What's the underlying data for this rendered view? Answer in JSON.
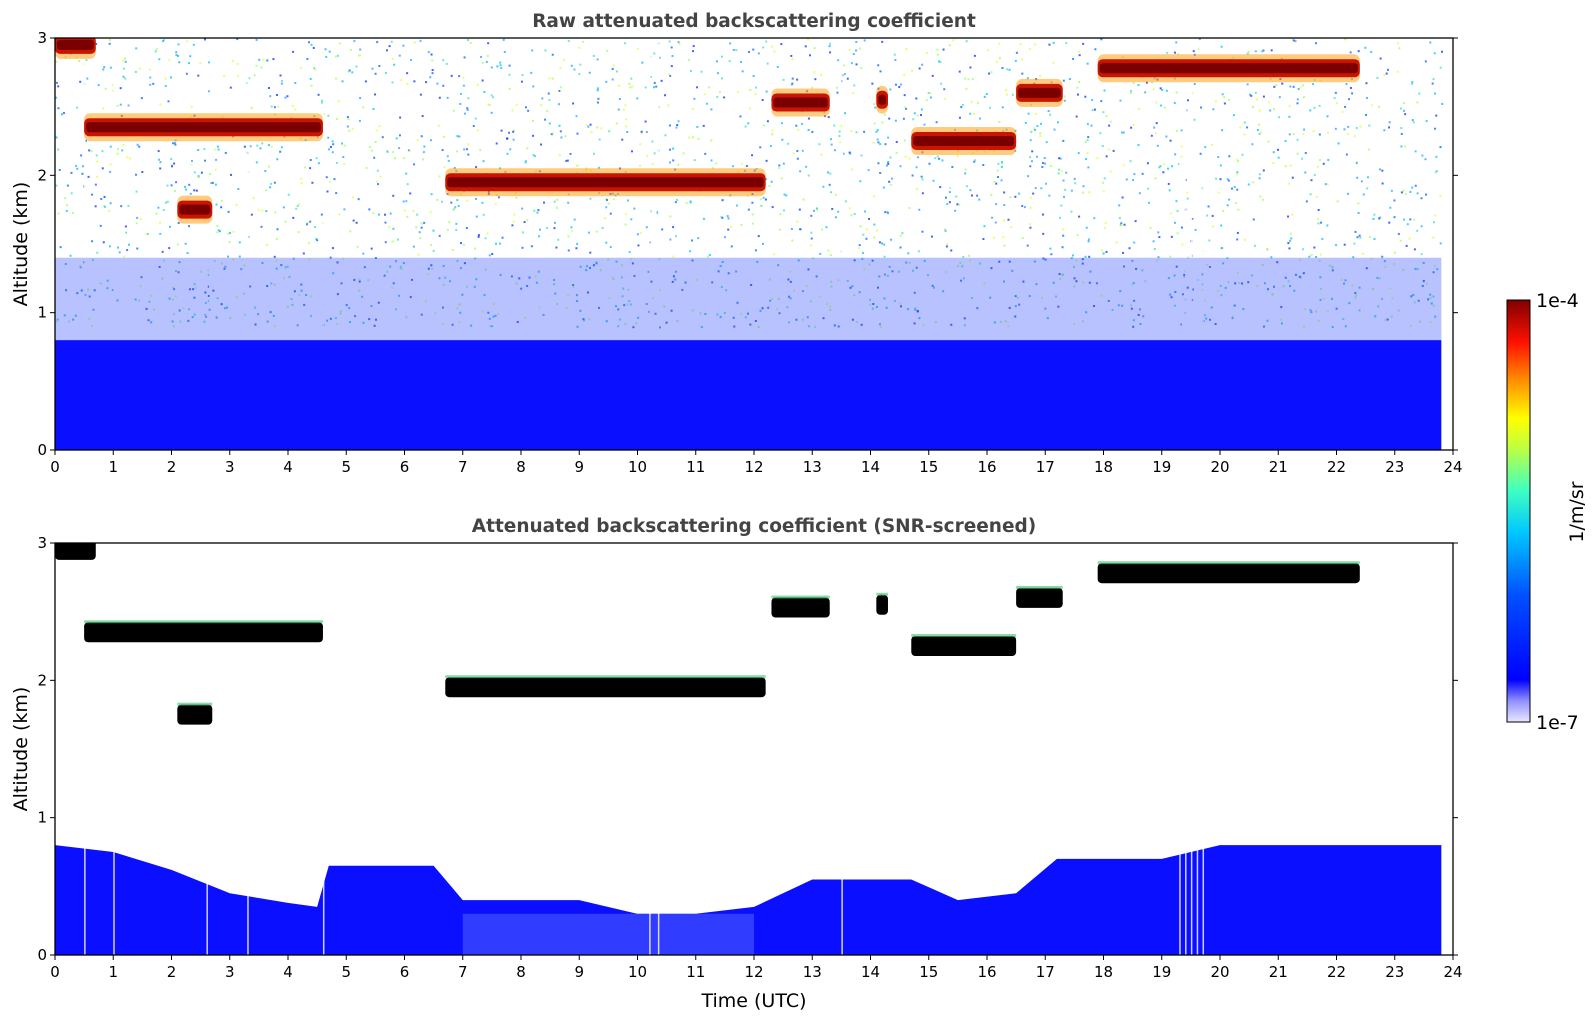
{
  "chart_data": [
    {
      "type": "heatmap",
      "title": "Raw attenuated backscattering coefficient",
      "xlabel": "",
      "ylabel": "Altitude (km)",
      "xlim": [
        0,
        24
      ],
      "ylim": [
        0,
        3
      ],
      "x_ticks": [
        "0",
        "1",
        "2",
        "3",
        "4",
        "5",
        "6",
        "7",
        "8",
        "9",
        "10",
        "11",
        "12",
        "13",
        "14",
        "15",
        "16",
        "17",
        "18",
        "19",
        "20",
        "21",
        "22",
        "23",
        "24"
      ],
      "y_ticks": [
        "0",
        "1",
        "2",
        "3"
      ],
      "data_end_hour": 23.8,
      "cloud_layers": [
        {
          "start": 0.0,
          "end": 0.7,
          "alt": 2.95
        },
        {
          "start": 0.5,
          "end": 4.6,
          "alt": 2.35
        },
        {
          "start": 2.1,
          "end": 2.7,
          "alt": 1.75
        },
        {
          "start": 6.7,
          "end": 12.2,
          "alt": 1.95
        },
        {
          "start": 12.3,
          "end": 13.3,
          "alt": 2.53
        },
        {
          "start": 14.1,
          "end": 14.3,
          "alt": 2.55
        },
        {
          "start": 14.7,
          "end": 16.5,
          "alt": 2.25
        },
        {
          "start": 16.5,
          "end": 17.3,
          "alt": 2.6
        },
        {
          "start": 17.9,
          "end": 22.4,
          "alt": 2.78
        }
      ],
      "boundary_layer_top_km": 0.8
    },
    {
      "type": "heatmap",
      "title": "Attenuated backscattering coefficient (SNR-screened)",
      "xlabel": "Time (UTC)",
      "ylabel": "Altitude (km)",
      "xlim": [
        0,
        24
      ],
      "ylim": [
        0,
        3
      ],
      "x_ticks": [
        "0",
        "1",
        "2",
        "3",
        "4",
        "5",
        "6",
        "7",
        "8",
        "9",
        "10",
        "11",
        "12",
        "13",
        "14",
        "15",
        "16",
        "17",
        "18",
        "19",
        "20",
        "21",
        "22",
        "23",
        "24"
      ],
      "y_ticks": [
        "0",
        "1",
        "2",
        "3"
      ],
      "data_end_hour": 23.8,
      "boundary_layer_profile": [
        [
          0,
          0.8
        ],
        [
          1,
          0.75
        ],
        [
          2,
          0.62
        ],
        [
          3,
          0.45
        ],
        [
          4,
          0.38
        ],
        [
          4.5,
          0.35
        ],
        [
          4.7,
          0.65
        ],
        [
          6.5,
          0.65
        ],
        [
          7,
          0.4
        ],
        [
          9,
          0.4
        ],
        [
          10,
          0.3
        ],
        [
          11,
          0.3
        ],
        [
          12,
          0.35
        ],
        [
          13,
          0.55
        ],
        [
          14.7,
          0.55
        ],
        [
          15.5,
          0.4
        ],
        [
          16.5,
          0.45
        ],
        [
          17.2,
          0.7
        ],
        [
          19,
          0.7
        ],
        [
          20,
          0.8
        ],
        [
          23.8,
          0.8
        ]
      ]
    }
  ],
  "colorbar": {
    "label": "1/m/sr",
    "max_label": "1e-4",
    "min_label": "1e-7",
    "scale": "log",
    "colormap": "jet"
  },
  "colors": {
    "title": "#444444",
    "cloud_core": "#8b0000",
    "boundary_layer": "#0000ff",
    "saturated": "#000000"
  }
}
